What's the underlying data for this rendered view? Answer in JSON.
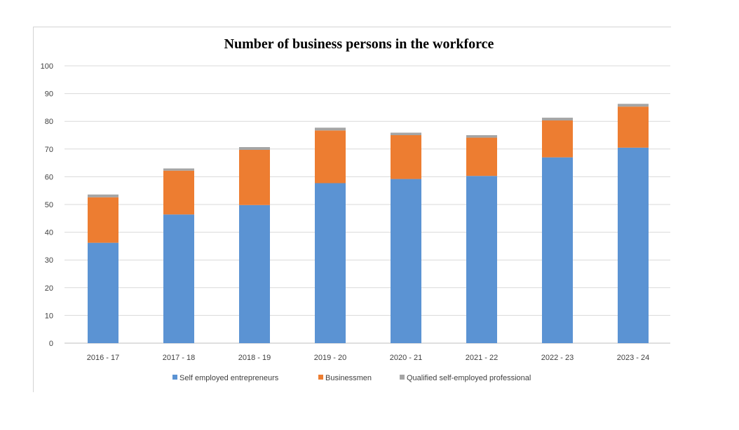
{
  "chart_data": {
    "type": "bar",
    "stacked": true,
    "title": "Number of business persons in the workforce",
    "xlabel": "",
    "ylabel": "",
    "ylim": [
      0,
      100
    ],
    "yticks": [
      "0",
      "10",
      "20",
      "30",
      "40",
      "50",
      "60",
      "70",
      "80",
      "90",
      "100"
    ],
    "grid": true,
    "legend_position": "bottom",
    "categories": [
      "2016 - 17",
      "2017 - 18",
      "2018 - 19",
      "2019 - 20",
      "2020 - 21",
      "2021 - 22",
      "2022 - 23",
      "2023 - 24"
    ],
    "series": [
      {
        "name": "Self employed entrepreneurs",
        "color": "#5b93d3",
        "values": [
          36.2,
          46.4,
          49.8,
          57.7,
          59.2,
          60.3,
          67.0,
          70.5
        ]
      },
      {
        "name": "Businessmen",
        "color": "#ed7d31",
        "values": [
          16.4,
          15.8,
          19.9,
          19.0,
          15.8,
          13.8,
          13.3,
          14.8
        ]
      },
      {
        "name": "Qualified self-employed professional",
        "color": "#a5a5a5",
        "values": [
          1.0,
          0.8,
          1.0,
          1.0,
          0.9,
          0.9,
          1.0,
          1.0
        ]
      }
    ]
  }
}
